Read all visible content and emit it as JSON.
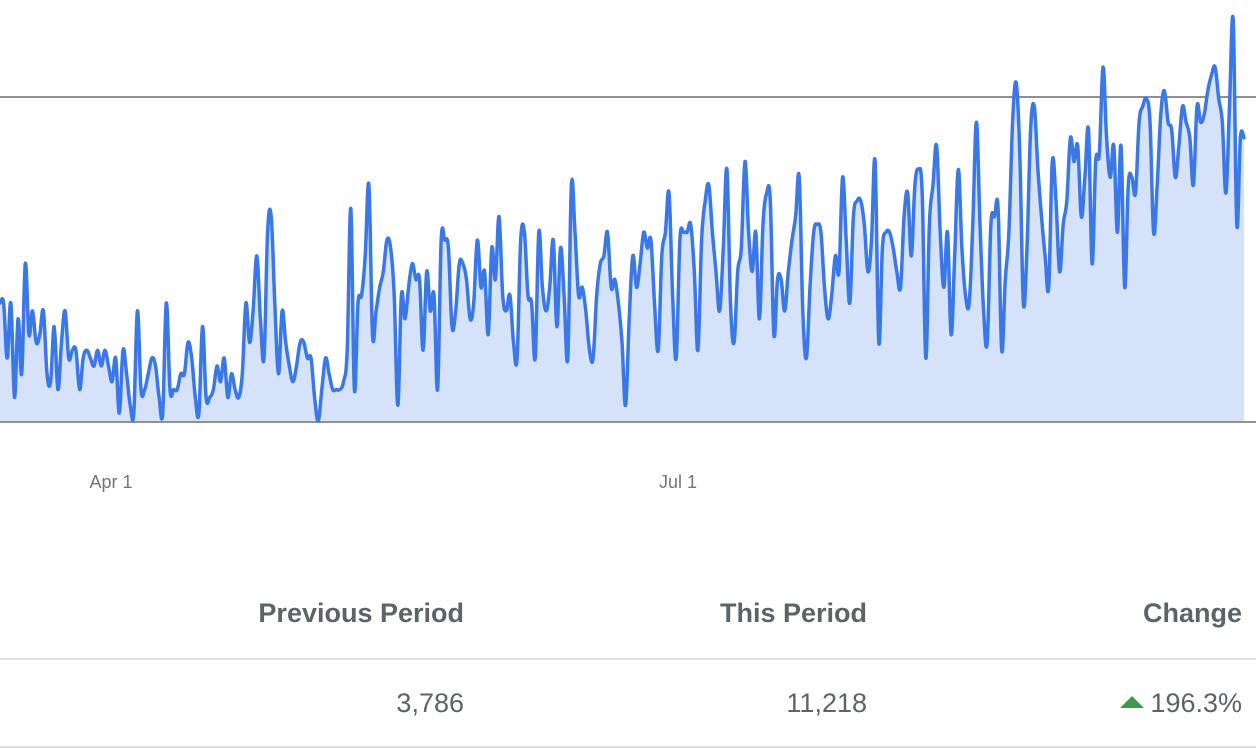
{
  "chart_data": {
    "type": "area",
    "title": "",
    "xlabel": "",
    "ylabel": "",
    "x_tick_labels": [
      "Apr 1",
      "Jul 1"
    ],
    "x_tick_day_index": [
      75,
      166
    ],
    "grid": "horizontal",
    "legend": "none",
    "colors": {
      "line": "#3b78e7",
      "fill": "#d5e2f7",
      "gridline": "#5f5f5f"
    },
    "values": [
      15,
      15,
      8,
      15,
      3,
      13,
      6,
      20,
      11,
      14,
      10,
      11,
      14,
      6,
      5,
      12,
      4,
      10,
      14,
      8,
      9,
      9,
      4,
      8,
      9,
      8,
      7,
      9,
      7,
      9,
      7,
      5,
      8,
      1,
      9,
      6,
      2,
      1,
      14,
      4,
      4,
      6,
      8,
      7,
      3,
      1,
      15,
      4,
      4,
      4,
      6,
      6,
      10,
      8,
      3,
      1,
      12,
      3,
      3,
      4,
      7,
      5,
      8,
      3,
      6,
      4,
      3,
      6,
      15,
      10,
      14,
      21,
      13,
      8,
      24,
      26,
      15,
      6,
      14,
      10,
      7,
      5,
      7,
      10,
      10,
      8,
      8,
      3,
      0,
      4,
      8,
      6,
      4,
      4,
      4,
      5,
      9,
      27,
      4,
      15,
      16,
      21,
      30,
      11,
      14,
      17,
      19,
      23,
      22,
      16,
      2,
      16,
      13,
      17,
      20,
      18,
      18,
      9,
      19,
      14,
      16,
      4,
      23,
      23,
      22,
      12,
      14,
      20,
      20,
      18,
      13,
      15,
      23,
      17,
      19,
      11,
      22,
      18,
      26,
      16,
      14,
      16,
      10,
      8,
      23,
      24,
      16,
      15,
      8,
      24,
      17,
      14,
      17,
      23,
      12,
      22,
      16,
      8,
      30,
      24,
      16,
      17,
      14,
      9,
      8,
      16,
      20,
      21,
      24,
      17,
      18,
      15,
      10,
      2,
      13,
      21,
      17,
      20,
      24,
      22,
      23,
      15,
      9,
      21,
      24,
      29,
      16,
      8,
      23,
      24,
      24,
      25,
      19,
      9,
      23,
      28,
      30,
      24,
      19,
      14,
      22,
      32,
      15,
      10,
      19,
      22,
      33,
      24,
      19,
      24,
      13,
      25,
      29,
      28,
      11,
      18,
      18,
      14,
      19,
      23,
      26,
      31,
      14,
      8,
      17,
      24,
      25,
      24,
      17,
      13,
      16,
      21,
      19,
      31,
      23,
      15,
      26,
      28,
      28,
      25,
      19,
      23,
      33,
      10,
      22,
      24,
      24,
      22,
      19,
      17,
      26,
      29,
      21,
      30,
      32,
      29,
      8,
      25,
      30,
      35,
      24,
      17,
      24,
      11,
      21,
      32,
      22,
      16,
      15,
      25,
      38,
      25,
      14,
      10,
      25,
      26,
      27,
      9,
      18,
      24,
      38,
      43,
      34,
      15,
      22,
      37,
      40,
      32,
      26,
      21,
      17,
      33,
      28,
      19,
      25,
      28,
      36,
      33,
      35,
      26,
      31,
      37,
      20,
      33,
      34,
      45,
      36,
      31,
      35,
      24,
      35,
      17,
      30,
      31,
      29,
      38,
      40,
      41,
      38,
      24,
      30,
      39,
      42,
      38,
      37,
      31,
      35,
      40,
      38,
      36,
      30,
      40,
      38,
      39,
      42,
      44,
      45,
      41,
      38,
      29,
      40,
      51,
      25,
      36,
      36
    ]
  },
  "table": {
    "headers": [
      "Previous Period",
      "This Period",
      "Change"
    ],
    "values": [
      "3,786",
      "11,218",
      "196.3%"
    ],
    "change_direction": "up"
  }
}
